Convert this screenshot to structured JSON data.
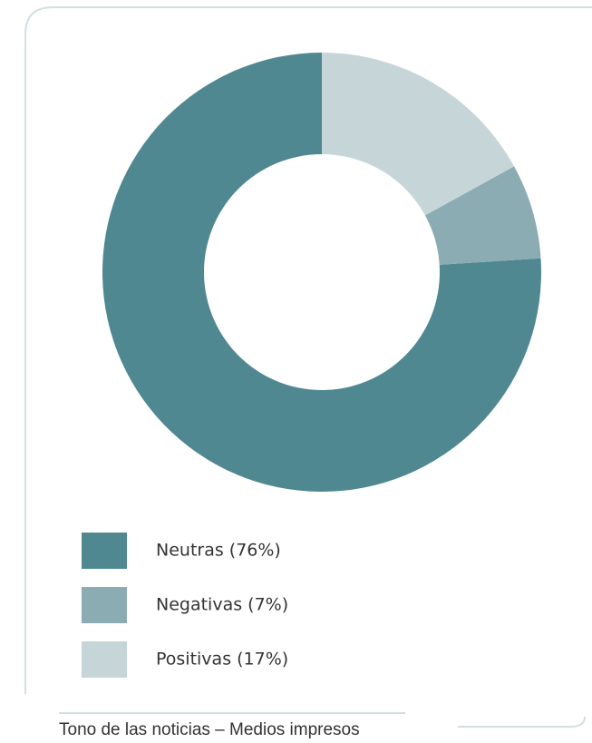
{
  "chart_data": {
    "type": "donut",
    "title": "Tono de las noticias – Medios impresos",
    "categories": [
      "Neutras (76%)",
      "Negativas (7%)",
      "Positivas (17%)"
    ],
    "values": [
      76,
      7,
      17
    ],
    "colors": [
      "#4f8890",
      "#8aacb2",
      "#c5d5d8"
    ]
  }
}
